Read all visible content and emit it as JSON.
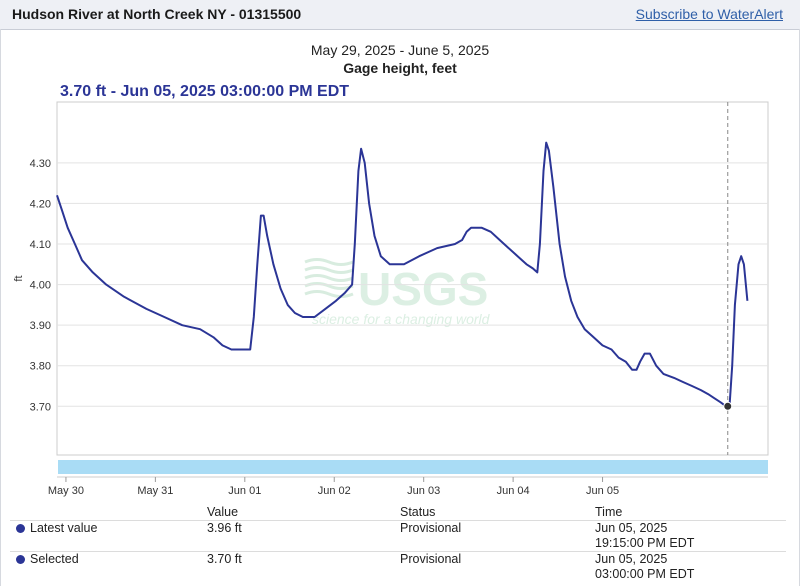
{
  "header": {
    "site_title": "Hudson River at North Creek NY - 01315500",
    "subscribe_label": "Subscribe to WaterAlert"
  },
  "chart_header": {
    "date_range": "May 29, 2025 - June 5, 2025",
    "parameter": "Gage height, feet",
    "selected_readout": "3.70 ft - Jun 05, 2025 03:00:00 PM EDT"
  },
  "chart_data": {
    "type": "line",
    "title": "Gage height, feet",
    "subtitle": "May 29, 2025 - June 5, 2025",
    "ylabel": "ft",
    "ylim": [
      3.58,
      4.45
    ],
    "yticks": [
      "3.70",
      "3.80",
      "3.90",
      "4.00",
      "4.10",
      "4.20",
      "4.30"
    ],
    "xlim_days": [
      0,
      7.95
    ],
    "xticks": [
      {
        "label": "May 30",
        "day": 0.1
      },
      {
        "label": "May 31",
        "day": 1.1
      },
      {
        "label": "Jun 01",
        "day": 2.1
      },
      {
        "label": "Jun 02",
        "day": 3.1
      },
      {
        "label": "Jun 03",
        "day": 4.1
      },
      {
        "label": "Jun 04",
        "day": 5.1
      },
      {
        "label": "Jun 05",
        "day": 6.1
      }
    ],
    "grid": true,
    "watermark": {
      "logo": "USGS",
      "tagline": "science for a changing world"
    },
    "colors": {
      "line": "#2b3596",
      "nav_bar": "#a9dcf5",
      "marker": "#333333"
    },
    "series": [
      {
        "points": [
          [
            0.0,
            4.22
          ],
          [
            0.06,
            4.18
          ],
          [
            0.12,
            4.14
          ],
          [
            0.2,
            4.1
          ],
          [
            0.28,
            4.06
          ],
          [
            0.4,
            4.03
          ],
          [
            0.55,
            4.0
          ],
          [
            0.75,
            3.97
          ],
          [
            1.0,
            3.94
          ],
          [
            1.2,
            3.92
          ],
          [
            1.4,
            3.9
          ],
          [
            1.6,
            3.89
          ],
          [
            1.75,
            3.87
          ],
          [
            1.85,
            3.85
          ],
          [
            1.95,
            3.84
          ],
          [
            2.1,
            3.84
          ],
          [
            2.16,
            3.84
          ],
          [
            2.2,
            3.92
          ],
          [
            2.24,
            4.05
          ],
          [
            2.28,
            4.17
          ],
          [
            2.31,
            4.17
          ],
          [
            2.35,
            4.12
          ],
          [
            2.42,
            4.05
          ],
          [
            2.5,
            3.99
          ],
          [
            2.58,
            3.95
          ],
          [
            2.66,
            3.93
          ],
          [
            2.75,
            3.92
          ],
          [
            2.88,
            3.92
          ],
          [
            3.0,
            3.94
          ],
          [
            3.12,
            3.96
          ],
          [
            3.22,
            3.98
          ],
          [
            3.3,
            4.0
          ],
          [
            3.33,
            4.1
          ],
          [
            3.37,
            4.28
          ],
          [
            3.4,
            4.335
          ],
          [
            3.44,
            4.3
          ],
          [
            3.49,
            4.2
          ],
          [
            3.55,
            4.12
          ],
          [
            3.62,
            4.07
          ],
          [
            3.72,
            4.05
          ],
          [
            3.88,
            4.05
          ],
          [
            4.05,
            4.07
          ],
          [
            4.25,
            4.09
          ],
          [
            4.45,
            4.1
          ],
          [
            4.53,
            4.11
          ],
          [
            4.58,
            4.13
          ],
          [
            4.63,
            4.14
          ],
          [
            4.75,
            4.14
          ],
          [
            4.85,
            4.13
          ],
          [
            4.95,
            4.11
          ],
          [
            5.05,
            4.09
          ],
          [
            5.15,
            4.07
          ],
          [
            5.25,
            4.05
          ],
          [
            5.32,
            4.04
          ],
          [
            5.37,
            4.03
          ],
          [
            5.4,
            4.1
          ],
          [
            5.44,
            4.28
          ],
          [
            5.47,
            4.35
          ],
          [
            5.5,
            4.33
          ],
          [
            5.55,
            4.24
          ],
          [
            5.62,
            4.1
          ],
          [
            5.68,
            4.02
          ],
          [
            5.75,
            3.96
          ],
          [
            5.82,
            3.92
          ],
          [
            5.9,
            3.89
          ],
          [
            6.0,
            3.87
          ],
          [
            6.1,
            3.85
          ],
          [
            6.2,
            3.84
          ],
          [
            6.28,
            3.82
          ],
          [
            6.36,
            3.81
          ],
          [
            6.43,
            3.79
          ],
          [
            6.48,
            3.79
          ],
          [
            6.52,
            3.81
          ],
          [
            6.57,
            3.83
          ],
          [
            6.63,
            3.83
          ],
          [
            6.7,
            3.8
          ],
          [
            6.78,
            3.78
          ],
          [
            6.9,
            3.77
          ],
          [
            7.0,
            3.76
          ],
          [
            7.1,
            3.75
          ],
          [
            7.2,
            3.74
          ],
          [
            7.28,
            3.73
          ],
          [
            7.35,
            3.72
          ],
          [
            7.42,
            3.71
          ],
          [
            7.48,
            3.7
          ],
          [
            7.52,
            3.7
          ],
          [
            7.55,
            3.8
          ],
          [
            7.58,
            3.95
          ],
          [
            7.62,
            4.05
          ],
          [
            7.65,
            4.07
          ],
          [
            7.68,
            4.05
          ],
          [
            7.72,
            3.96
          ]
        ]
      }
    ],
    "selected_point": {
      "day": 7.5,
      "value": 3.7
    },
    "cursor_day": 7.5
  },
  "legend": {
    "headers": {
      "value": "Value",
      "status": "Status",
      "time": "Time"
    },
    "rows": [
      {
        "name": "Latest value",
        "value": "3.96 ft",
        "status": "Provisional",
        "date": "Jun 05, 2025",
        "time": "19:15:00 PM EDT"
      },
      {
        "name": "Selected",
        "value": "3.70 ft",
        "status": "Provisional",
        "date": "Jun 05, 2025",
        "time": "03:00:00 PM EDT"
      }
    ]
  }
}
